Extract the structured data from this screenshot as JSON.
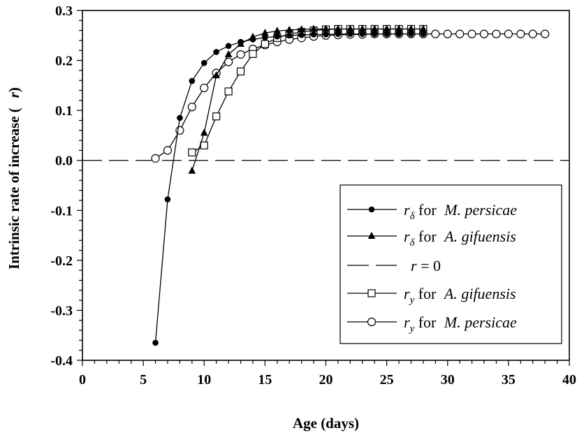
{
  "chart_data": {
    "type": "line",
    "title": "",
    "xlabel": "Age (days)",
    "ylabel": "Intrinsic rate of increase (",
    "ylabel_symbol": "r",
    "ylabel_close": ")",
    "xlim": [
      0,
      40
    ],
    "ylim": [
      -0.4,
      0.3
    ],
    "x_ticks": [
      0,
      5,
      10,
      15,
      20,
      25,
      30,
      35,
      40
    ],
    "y_ticks": [
      -0.4,
      -0.3,
      -0.2,
      -0.1,
      0.0,
      0.1,
      0.2,
      0.3
    ],
    "x_tick_labels": [
      "0",
      "5",
      "10",
      "15",
      "20",
      "25",
      "30",
      "35",
      "40"
    ],
    "y_tick_labels": [
      "-0.4",
      "-0.3",
      "-0.2",
      "-0.1",
      "0.0",
      "0.1",
      "0.2",
      "0.3"
    ],
    "grid": false,
    "legend_position": "bottom-right",
    "series": [
      {
        "key": "rd_mp",
        "marker": "filled-circle",
        "legend": {
          "sym": "r",
          "sub": "δ",
          "mid": " for ",
          "species": "M. persicae"
        },
        "x": [
          6,
          7,
          8,
          9,
          10,
          11,
          12,
          13,
          14,
          15,
          16,
          17,
          18,
          19,
          20,
          21,
          22,
          23,
          24,
          25,
          26,
          27,
          28
        ],
        "y": [
          -0.365,
          -0.078,
          0.085,
          0.159,
          0.195,
          0.217,
          0.229,
          0.237,
          0.242,
          0.246,
          0.248,
          0.25,
          0.251,
          0.252,
          0.252,
          0.253,
          0.253,
          0.253,
          0.253,
          0.253,
          0.253,
          0.253,
          0.253
        ]
      },
      {
        "key": "rd_ag",
        "marker": "filled-triangle",
        "legend": {
          "sym": "r",
          "sub": "δ",
          "mid": " for ",
          "species": "A. gifuensis"
        },
        "x": [
          9,
          10,
          11,
          12,
          13,
          14,
          15,
          16,
          17,
          18,
          19,
          20,
          21,
          22,
          23,
          24,
          25,
          26,
          27,
          28
        ],
        "y": [
          -0.021,
          0.055,
          0.17,
          0.212,
          0.233,
          0.247,
          0.255,
          0.259,
          0.261,
          0.262,
          0.263,
          0.263,
          0.263,
          0.263,
          0.263,
          0.263,
          0.263,
          0.263,
          0.263,
          0.263
        ]
      },
      {
        "key": "r_zero",
        "marker": "none",
        "dashed": true,
        "legend": {
          "sym": "r",
          "mid": " = 0"
        }
      },
      {
        "key": "ry_ag",
        "marker": "open-square",
        "legend": {
          "sym": "r",
          "sub": "y",
          "mid": " for ",
          "species": "A. gifuensis"
        },
        "x": [
          9,
          10,
          11,
          12,
          13,
          14,
          15,
          16,
          17,
          18,
          19,
          20,
          21,
          22,
          23,
          24,
          25,
          26,
          27,
          28
        ],
        "y": [
          0.016,
          0.03,
          0.088,
          0.138,
          0.178,
          0.213,
          0.233,
          0.245,
          0.253,
          0.257,
          0.26,
          0.262,
          0.263,
          0.263,
          0.263,
          0.263,
          0.263,
          0.263,
          0.263,
          0.263
        ]
      },
      {
        "key": "ry_mp",
        "marker": "open-circle",
        "legend": {
          "sym": "r",
          "sub": "y",
          "mid": " for ",
          "species": "M. persicae"
        },
        "x": [
          6,
          7,
          8,
          9,
          10,
          11,
          12,
          13,
          14,
          15,
          16,
          17,
          18,
          19,
          20,
          21,
          22,
          23,
          24,
          25,
          26,
          27,
          28,
          29,
          30,
          31,
          32,
          33,
          34,
          35,
          36,
          37,
          38
        ],
        "y": [
          0.004,
          0.02,
          0.06,
          0.107,
          0.145,
          0.175,
          0.197,
          0.212,
          0.223,
          0.231,
          0.237,
          0.242,
          0.245,
          0.248,
          0.25,
          0.251,
          0.252,
          0.252,
          0.253,
          0.253,
          0.253,
          0.253,
          0.253,
          0.253,
          0.253,
          0.253,
          0.253,
          0.253,
          0.253,
          0.253,
          0.253,
          0.253,
          0.253
        ]
      }
    ]
  }
}
